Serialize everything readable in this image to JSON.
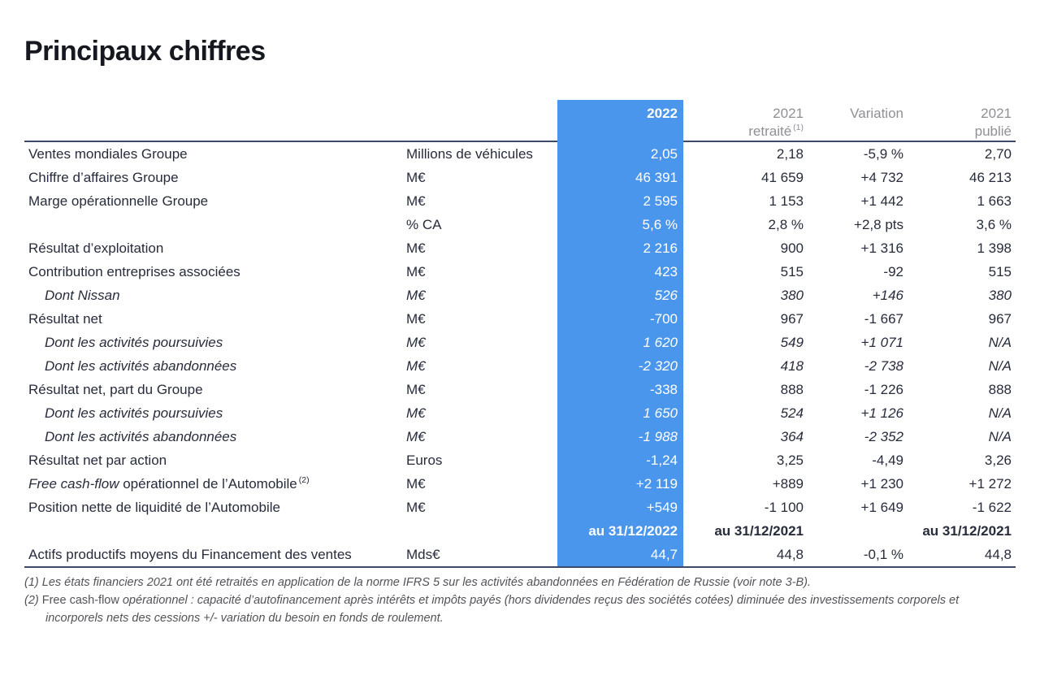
{
  "colors": {
    "accent_blue": "#4a96ed",
    "text_dark": "#272c3c",
    "header_gray": "#8f9094",
    "rule_navy": "#3c4a68",
    "footnote_gray": "#515359"
  },
  "page": {
    "title": "Principaux chiffres"
  },
  "table": {
    "header": {
      "col2022": "2022",
      "col2021r_line1": "2021",
      "col2021r_line2": "retraité",
      "col2021r_sup": "(1)",
      "variation": "Variation",
      "col2021p_line1": "2021",
      "col2021p_line2": "publié"
    },
    "rows": [
      {
        "label": "Ventes mondiales Groupe",
        "unit": "Millions de véhicules",
        "v2022": "2,05",
        "v2021r": "2,18",
        "variation": "-5,9 %",
        "v2021p": "2,70"
      },
      {
        "label": "Chiffre d’affaires Groupe",
        "unit": "M€",
        "v2022": "46 391",
        "v2021r": "41 659",
        "variation": "+4 732",
        "v2021p": "46 213"
      },
      {
        "label": "Marge opérationnelle Groupe",
        "unit": "M€",
        "v2022": "2 595",
        "v2021r": "1 153",
        "variation": "+1 442",
        "v2021p": "1 663"
      },
      {
        "label": "",
        "unit": "% CA",
        "v2022": "5,6 %",
        "v2021r": "2,8 %",
        "variation": "+2,8 pts",
        "v2021p": "3,6 %"
      },
      {
        "label": "Résultat d’exploitation",
        "unit": "M€",
        "v2022": "2 216",
        "v2021r": "900",
        "variation": "+1 316",
        "v2021p": "1 398"
      },
      {
        "label": "Contribution entreprises associées",
        "unit": "M€",
        "v2022": "423",
        "v2021r": "515",
        "variation": "-92",
        "v2021p": "515"
      },
      {
        "label": "Dont Nissan",
        "unit": "M€",
        "italic": true,
        "v2022": "526",
        "v2021r": "380",
        "variation": "+146",
        "v2021p": "380"
      },
      {
        "label": "Résultat net",
        "unit": "M€",
        "v2022": "-700",
        "v2021r": "967",
        "variation": "-1 667",
        "v2021p": "967"
      },
      {
        "label": "Dont les activités poursuivies",
        "unit": "M€",
        "italic": true,
        "v2022": "1 620",
        "v2021r": "549",
        "variation": "+1 071",
        "v2021p": "N/A"
      },
      {
        "label": "Dont les activités abandonnées",
        "unit": "M€",
        "italic": true,
        "v2022": "-2 320",
        "v2021r": "418",
        "variation": "-2 738",
        "v2021p": "N/A"
      },
      {
        "label": "Résultat net, part du Groupe",
        "unit": "M€",
        "v2022": "-338",
        "v2021r": "888",
        "variation": "-1 226",
        "v2021p": "888"
      },
      {
        "label": "Dont les activités poursuivies",
        "unit": "M€",
        "italic": true,
        "v2022": "1 650",
        "v2021r": "524",
        "variation": "+1 126",
        "v2021p": "N/A"
      },
      {
        "label": "Dont les activités abandonnées",
        "unit": "M€",
        "italic": true,
        "v2022": "-1 988",
        "v2021r": "364",
        "variation": "-2 352",
        "v2021p": "N/A"
      },
      {
        "label": "Résultat net par action",
        "unit": "Euros",
        "v2022": "-1,24",
        "v2021r": "3,25",
        "variation": "-4,49",
        "v2021p": "3,26"
      },
      {
        "label_italic": "Free cash-flow",
        "label_rest": " opérationnel de l’Automobile",
        "label_sup": "(2)",
        "unit": "M€",
        "v2022": "+2 119",
        "v2021r": "+889",
        "variation": "+1 230",
        "v2021p": "+1 272"
      },
      {
        "label": "Position nette de liquidité de l’Automobile",
        "unit": "M€",
        "v2022": "+549",
        "v2021r": "-1 100",
        "variation": "+1 649",
        "v2021p": "-1 622"
      },
      {
        "subheader": true,
        "label": "",
        "unit": "",
        "v2022": "au 31/12/2022",
        "v2021r": "au 31/12/2021",
        "variation": "",
        "v2021p": "au 31/12/2021"
      },
      {
        "label": "Actifs productifs moyens du Financement des ventes",
        "unit": "Mds€",
        "v2022": "44,7",
        "v2021r": "44,8",
        "variation": "-0,1 %",
        "v2021p": "44,8"
      }
    ],
    "footnotes": {
      "f1": "(1) Les états financiers 2021 ont été retraités en application de la norme IFRS 5 sur les activités abandonnées en Fédération de Russie (voir note 3-B).",
      "f2_marker": "(2) ",
      "f2_term": "Free cash-flow",
      "f2_rest": " opérationnel : capacité d’autofinancement après intérêts et impôts payés (hors dividendes reçus des sociétés cotées) diminuée des investissements corporels et incorporels nets des cessions +/- variation du besoin en fonds de roulement."
    }
  }
}
